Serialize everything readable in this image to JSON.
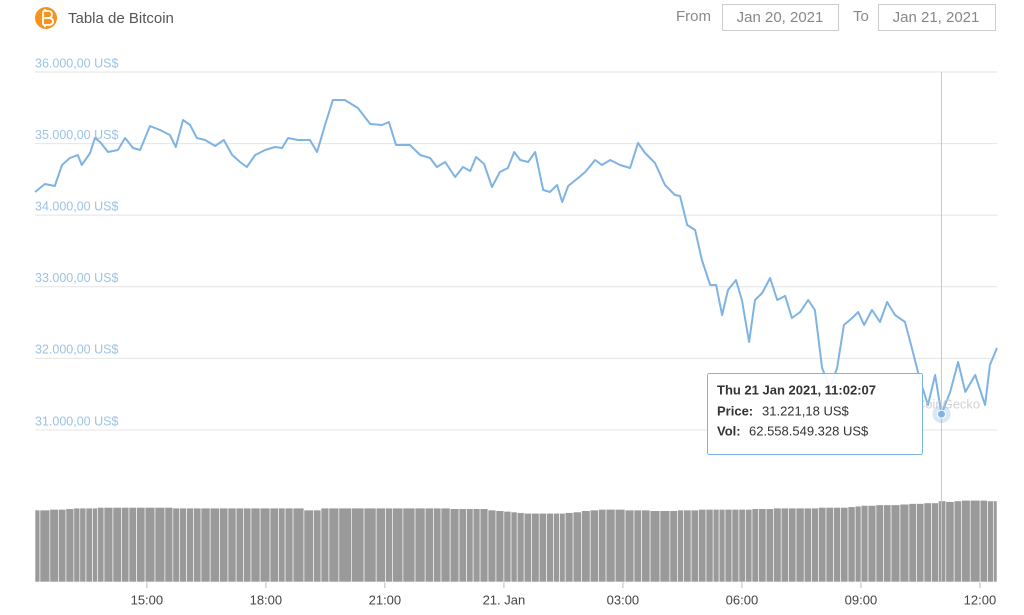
{
  "header": {
    "title": "Tabla de Bitcoin",
    "from_label": "From",
    "from": "Jan 20, 2021",
    "to_label": "To",
    "to": "Jan 21, 2021"
  },
  "chart_data": {
    "type": "line",
    "x": [
      12.18,
      12.43,
      12.68,
      12.86,
      13.06,
      13.26,
      13.36,
      13.57,
      13.69,
      13.82,
      14.02,
      14.27,
      14.45,
      14.65,
      14.83,
      15.08,
      15.33,
      15.58,
      15.73,
      15.91,
      16.09,
      16.26,
      16.47,
      16.72,
      16.94,
      17.15,
      17.35,
      17.52,
      17.73,
      17.98,
      18.23,
      18.41,
      18.56,
      18.81,
      19.11,
      19.29,
      19.49,
      19.69,
      19.99,
      20.32,
      20.63,
      20.93,
      21.1,
      21.28,
      21.63,
      21.89,
      22.14,
      22.31,
      22.52,
      22.77,
      22.97,
      23.15,
      23.3,
      23.5,
      23.7,
      23.9,
      24.1,
      24.26,
      24.41,
      24.61,
      24.79,
      24.99,
      25.16,
      25.34,
      25.47,
      25.62,
      25.87,
      26.05,
      26.3,
      26.47,
      26.68,
      26.93,
      27.18,
      27.38,
      27.56,
      27.81,
      28.06,
      28.31,
      28.44,
      28.62,
      28.82,
      28.99,
      29.2,
      29.35,
      29.5,
      29.65,
      29.85,
      30.0,
      30.18,
      30.33,
      30.51,
      30.71,
      30.89,
      31.09,
      31.26,
      31.47,
      31.67,
      31.84,
      32.02,
      32.22,
      32.4,
      32.57,
      32.78,
      32.93,
      33.08,
      33.28,
      33.48,
      33.66,
      33.86,
      34.11,
      34.31,
      34.49,
      34.69,
      34.87,
      35.03,
      35.25,
      35.45,
      35.63,
      35.88,
      36.13,
      36.25,
      36.43
    ],
    "series": [
      {
        "name": "Price",
        "color": "#7fb3e3",
        "values": [
          34324,
          34436,
          34408,
          34701,
          34799,
          34841,
          34701,
          34869,
          35078,
          35022,
          34883,
          34911,
          35078,
          34939,
          34911,
          35246,
          35190,
          35120,
          34953,
          35330,
          35260,
          35078,
          35050,
          34966,
          35050,
          34841,
          34743,
          34673,
          34841,
          34911,
          34953,
          34939,
          35078,
          35050,
          35050,
          34883,
          35260,
          35609,
          35609,
          35497,
          35274,
          35260,
          35302,
          34980,
          34980,
          34841,
          34799,
          34673,
          34743,
          34534,
          34673,
          34617,
          34813,
          34715,
          34394,
          34603,
          34659,
          34883,
          34771,
          34743,
          34883,
          34352,
          34324,
          34422,
          34184,
          34408,
          34520,
          34603,
          34771,
          34701,
          34771,
          34701,
          34659,
          35008,
          34869,
          34729,
          34422,
          34282,
          34268,
          33863,
          33793,
          33374,
          33025,
          33025,
          32606,
          32955,
          33095,
          32816,
          32229,
          32816,
          32913,
          33123,
          32816,
          32872,
          32564,
          32648,
          32816,
          32676,
          31866,
          31587,
          31866,
          32466,
          32564,
          32648,
          32466,
          32676,
          32508,
          32788,
          32606,
          32508,
          32089,
          31698,
          31349,
          31768,
          31221.18,
          31531,
          31950,
          31531,
          31768,
          31349,
          31908,
          32145
        ]
      },
      {
        "name": "Vol",
        "color": "#9a9a9a",
        "axis": "y2",
        "values": [
          55500000000,
          55500000000,
          56000000000,
          56000000000,
          56500000000,
          57000000000,
          57000000000,
          57000000000,
          57000000000,
          57500000000,
          57500000000,
          57500000000,
          57500000000,
          57500000000,
          57500000000,
          57500000000,
          57500000000,
          57500000000,
          57000000000,
          57000000000,
          57000000000,
          57000000000,
          57000000000,
          57000000000,
          57000000000,
          57000000000,
          57000000000,
          57000000000,
          57000000000,
          57000000000,
          57000000000,
          57000000000,
          57000000000,
          57000000000,
          55500000000,
          55500000000,
          57000000000,
          57000000000,
          57000000000,
          57000000000,
          57000000000,
          57000000000,
          57000000000,
          57000000000,
          57000000000,
          57000000000,
          57000000000,
          57000000000,
          57000000000,
          56500000000,
          56500000000,
          56500000000,
          56500000000,
          56500000000,
          55500000000,
          55000000000,
          54500000000,
          54000000000,
          53500000000,
          53000000000,
          53000000000,
          53000000000,
          53000000000,
          53000000000,
          53000000000,
          53500000000,
          54000000000,
          55000000000,
          55500000000,
          56000000000,
          56000000000,
          56000000000,
          55500000000,
          55500000000,
          55500000000,
          55000000000,
          55000000000,
          55000000000,
          55500000000,
          55500000000,
          55500000000,
          56000000000,
          56000000000,
          56000000000,
          56000000000,
          56000000000,
          56000000000,
          56000000000,
          56000000000,
          56500000000,
          56500000000,
          56500000000,
          57000000000,
          57000000000,
          57000000000,
          57000000000,
          57000000000,
          57000000000,
          57500000000,
          57500000000,
          57500000000,
          57500000000,
          58000000000,
          58500000000,
          59000000000,
          59000000000,
          59500000000,
          59500000000,
          59500000000,
          60000000000,
          60500000000,
          60500000000,
          61000000000,
          61000000000,
          62558549328,
          62000000000,
          62500000000,
          63000000000,
          63000000000,
          63000000000,
          62500000000,
          62500000000
        ]
      }
    ],
    "ylim": [
      30600,
      36000
    ],
    "yticks": [
      {
        "value": 31000,
        "label": "31.000,00 US$"
      },
      {
        "value": 32000,
        "label": "32.000,00 US$"
      },
      {
        "value": 33000,
        "label": "33.000,00 US$"
      },
      {
        "value": 34000,
        "label": "34.000,00 US$"
      },
      {
        "value": 35000,
        "label": "35.000,00 US$"
      },
      {
        "value": 36000,
        "label": "36.000,00 US$"
      }
    ],
    "y2lim": [
      0,
      64000000000
    ],
    "xlim": [
      12.18,
      36.43
    ],
    "xticks": [
      {
        "value": 15,
        "label": "15:00"
      },
      {
        "value": 18,
        "label": "18:00"
      },
      {
        "value": 21,
        "label": "21:00"
      },
      {
        "value": 24,
        "label": "21. Jan"
      },
      {
        "value": 27,
        "label": "03:00"
      },
      {
        "value": 30,
        "label": "06:00"
      },
      {
        "value": 33,
        "label": "09:00"
      },
      {
        "value": 36,
        "label": "12:00"
      }
    ],
    "grid": true,
    "watermark": "CoinGecko",
    "tooltip": {
      "point": 114,
      "title": "Thu 21 Jan 2021, 11:02:07",
      "price_label": "Price:",
      "price": "31.221,18 US$",
      "vol_label": "Vol:",
      "vol": "62.558.549.328 US$"
    }
  }
}
